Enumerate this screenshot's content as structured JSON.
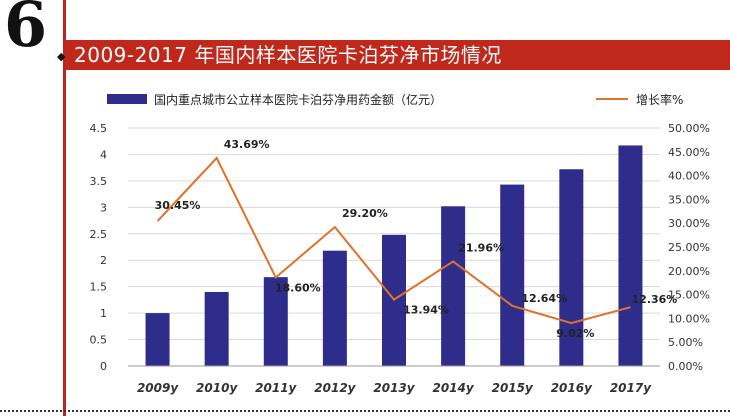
{
  "page": {
    "number": "6",
    "title": "2009-2017 年国内样本医院卡泊芬净市场情况"
  },
  "colors": {
    "bar": "#2e2d8c",
    "line": "#e0712a",
    "title_band": "#c0281c",
    "grid": "#d9d9d9"
  },
  "chart_data": {
    "type": "bar",
    "categories": [
      "2009y",
      "2010y",
      "2011y",
      "2012y",
      "2013y",
      "2014y",
      "2015y",
      "2016y",
      "2017y"
    ],
    "series": [
      {
        "name": "国内重点城市公立样本医院卡泊芬净用药金额（亿元）",
        "type": "bar",
        "axis": "left",
        "values": [
          1.0,
          1.4,
          1.68,
          2.18,
          2.48,
          3.02,
          3.43,
          3.72,
          4.17
        ]
      },
      {
        "name": "增长率%",
        "type": "line",
        "axis": "right",
        "values": [
          30.45,
          43.69,
          18.6,
          29.2,
          13.94,
          21.96,
          12.64,
          9.02,
          12.36
        ]
      }
    ],
    "data_labels": [
      {
        "series": "增长率%",
        "index": 0,
        "text": "30.45%"
      },
      {
        "series": "增长率%",
        "index": 1,
        "text": "43.69%"
      },
      {
        "series": "增长率%",
        "index": 2,
        "text": "18.60%"
      },
      {
        "series": "增长率%",
        "index": 3,
        "text": "29.20%"
      },
      {
        "series": "增长率%",
        "index": 4,
        "text": "13.94%"
      },
      {
        "series": "增长率%",
        "index": 5,
        "text": "21.96%"
      },
      {
        "series": "增长率%",
        "index": 6,
        "text": "12.64%"
      },
      {
        "series": "增长率%",
        "index": 7,
        "text": "9.02%"
      },
      {
        "series": "增长率%",
        "index": 8,
        "text": "12.36%"
      }
    ],
    "left_axis": {
      "ylim": [
        0,
        4.5
      ],
      "ticks": [
        "0",
        "0.5",
        "1",
        "1.5",
        "2",
        "2.5",
        "3",
        "3.5",
        "4",
        "4.5"
      ]
    },
    "right_axis": {
      "ylim": [
        0,
        50
      ],
      "ticks": [
        "0.00%",
        "5.00%",
        "10.00%",
        "15.00%",
        "20.00%",
        "25.00%",
        "30.00%",
        "35.00%",
        "40.00%",
        "45.00%",
        "50.00%"
      ]
    },
    "legend_position": "top",
    "grid": true
  }
}
